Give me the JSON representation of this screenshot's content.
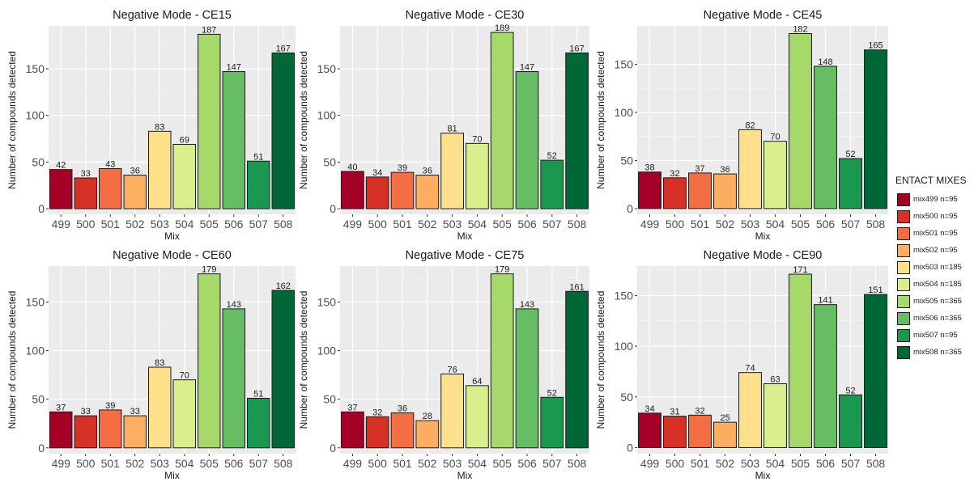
{
  "chart_data": [
    {
      "type": "bar",
      "title": "Negative Mode - CE15",
      "xlabel": "Mix",
      "ylabel": "Number of compounds detected",
      "categories": [
        "499",
        "500",
        "501",
        "502",
        "503",
        "504",
        "505",
        "506",
        "507",
        "508"
      ],
      "values": [
        42,
        33,
        43,
        36,
        83,
        69,
        187,
        147,
        51,
        167
      ],
      "ylim": [
        -6,
        196
      ],
      "yticks": [
        0,
        50,
        100,
        150
      ],
      "grid": true
    },
    {
      "type": "bar",
      "title": "Negative Mode - CE30",
      "xlabel": "Mix",
      "ylabel": "Number of compounds detected",
      "categories": [
        "499",
        "500",
        "501",
        "502",
        "503",
        "504",
        "505",
        "506",
        "507",
        "508"
      ],
      "values": [
        40,
        34,
        39,
        36,
        81,
        70,
        189,
        147,
        52,
        167
      ],
      "ylim": [
        -6,
        196
      ],
      "yticks": [
        0,
        50,
        100,
        150
      ],
      "grid": true
    },
    {
      "type": "bar",
      "title": "Negative Mode - CE45",
      "xlabel": "Mix",
      "ylabel": "Number of compounds detected",
      "categories": [
        "499",
        "500",
        "501",
        "502",
        "503",
        "504",
        "505",
        "506",
        "507",
        "508"
      ],
      "values": [
        38,
        32,
        37,
        36,
        82,
        70,
        182,
        148,
        52,
        165
      ],
      "ylim": [
        -6,
        190
      ],
      "yticks": [
        0,
        50,
        100,
        150
      ],
      "grid": true
    },
    {
      "type": "bar",
      "title": "Negative Mode - CE60",
      "xlabel": "Mix",
      "ylabel": "Number of compounds detected",
      "categories": [
        "499",
        "500",
        "501",
        "502",
        "503",
        "504",
        "505",
        "506",
        "507",
        "508"
      ],
      "values": [
        37,
        33,
        39,
        33,
        83,
        70,
        179,
        143,
        51,
        162
      ],
      "ylim": [
        -6,
        187
      ],
      "yticks": [
        0,
        50,
        100,
        150
      ],
      "grid": true
    },
    {
      "type": "bar",
      "title": "Negative Mode - CE75",
      "xlabel": "Mix",
      "ylabel": "Number of compounds detected",
      "categories": [
        "499",
        "500",
        "501",
        "502",
        "503",
        "504",
        "505",
        "506",
        "507",
        "508"
      ],
      "values": [
        37,
        32,
        36,
        28,
        76,
        64,
        179,
        143,
        52,
        161
      ],
      "ylim": [
        -6,
        187
      ],
      "yticks": [
        0,
        50,
        100,
        150
      ],
      "grid": true
    },
    {
      "type": "bar",
      "title": "Negative Mode - CE90",
      "xlabel": "Mix",
      "ylabel": "Number of compounds detected",
      "categories": [
        "499",
        "500",
        "501",
        "502",
        "503",
        "504",
        "505",
        "506",
        "507",
        "508"
      ],
      "values": [
        34,
        31,
        32,
        25,
        74,
        63,
        171,
        141,
        52,
        151
      ],
      "ylim": [
        -6,
        179
      ],
      "yticks": [
        0,
        50,
        100,
        150
      ],
      "grid": true
    }
  ],
  "legend": {
    "title": "ENTACT MIXES",
    "position": "right",
    "items": [
      {
        "label": "mix499 n=95",
        "color": "#a50026"
      },
      {
        "label": "mix500 n=95",
        "color": "#d73027"
      },
      {
        "label": "mix501 n=95",
        "color": "#f46d43"
      },
      {
        "label": "mix502 n=95",
        "color": "#fdae61"
      },
      {
        "label": "mix503 n=185",
        "color": "#fee08b"
      },
      {
        "label": "mix504 n=185",
        "color": "#d9ef8b"
      },
      {
        "label": "mix505 n=365",
        "color": "#a6d96a"
      },
      {
        "label": "mix506 n=365",
        "color": "#66bd63"
      },
      {
        "label": "mix507 n=95",
        "color": "#1a9850"
      },
      {
        "label": "mix508 n=365",
        "color": "#006837"
      }
    ]
  }
}
